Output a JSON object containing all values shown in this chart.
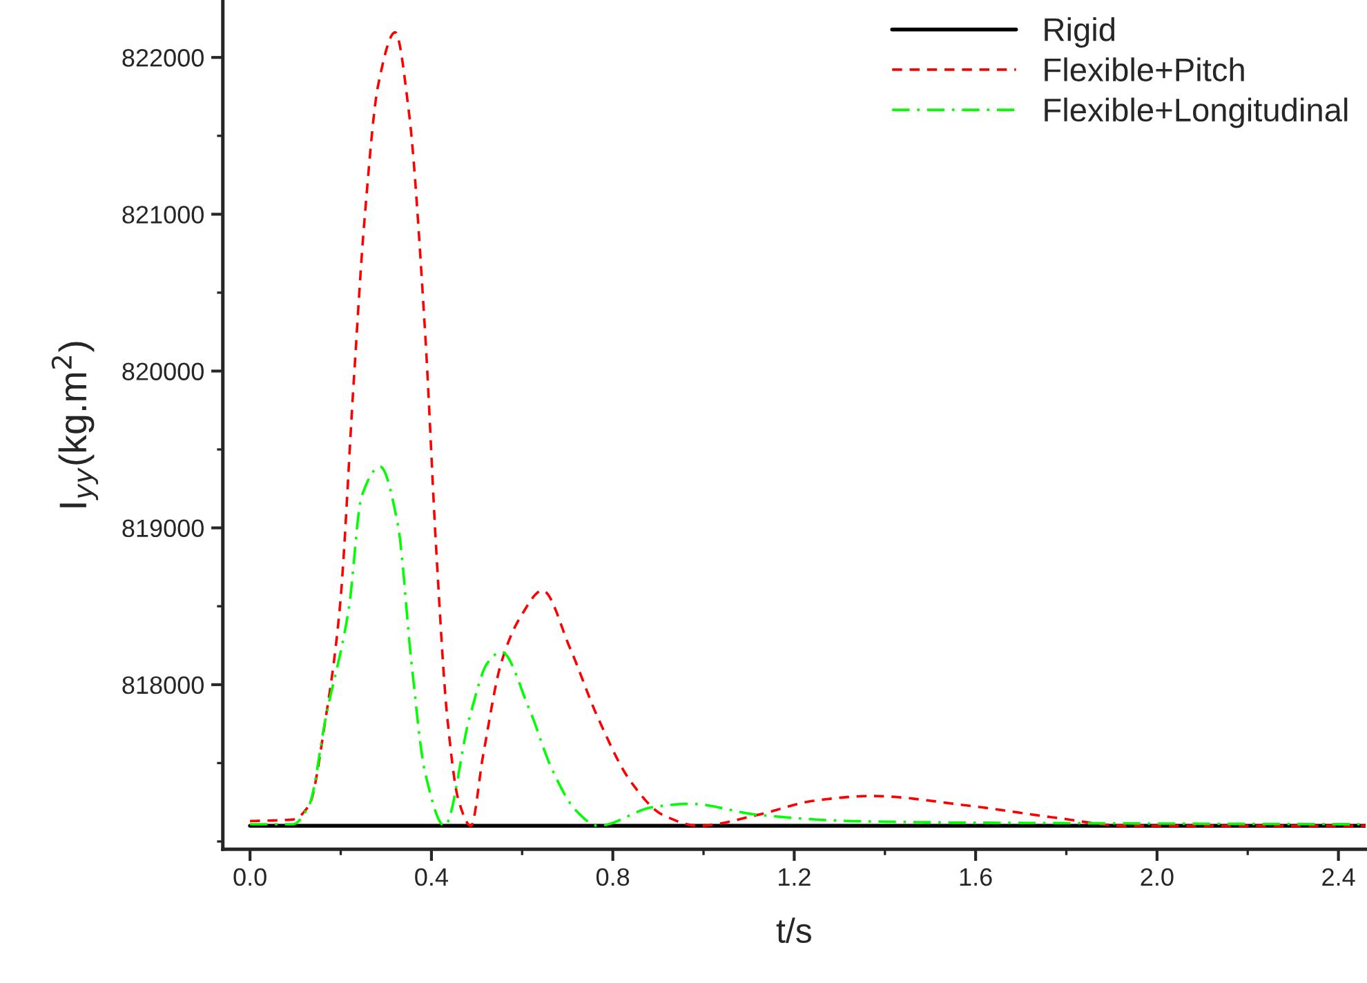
{
  "chart_data": {
    "type": "line",
    "xlabel": "t/s",
    "ylabel": "I$_{yy}$(kg.m$^{2}$)",
    "xlim": [
      -0.06,
      2.46
    ],
    "ylim": [
      816950,
      822360
    ],
    "xticks": [
      {
        "value": 0,
        "label": "0.0"
      },
      0.4,
      0.8,
      1.2,
      1.6,
      {
        "value": 2,
        "label": "2.0"
      },
      2.4
    ],
    "yticks": [
      818000,
      819000,
      820000,
      821000,
      822000
    ],
    "grid": false,
    "legend": "top right",
    "series": [
      {
        "name": "Rigid",
        "color": "#000000",
        "line_style": "solid",
        "x": [
          0,
          2.46
        ],
        "values": [
          817100,
          817100
        ]
      },
      {
        "name": "Flexible+Pitch",
        "color": "#ff0000",
        "line_style": "dashed",
        "x": [
          0,
          0.094,
          0.13,
          0.167,
          0.198,
          0.228,
          0.252,
          0.283,
          0.32,
          0.35,
          0.386,
          0.411,
          0.435,
          0.46,
          0.487,
          0.514,
          0.554,
          0.596,
          0.645,
          0.706,
          0.767,
          0.84,
          0.91,
          0.99,
          1.12,
          1.244,
          1.37,
          1.58,
          1.78,
          1.93,
          2.46
        ],
        "values": [
          817130,
          817140,
          817230,
          817790,
          818490,
          819900,
          820950,
          821830,
          822160,
          821660,
          820250,
          818840,
          817790,
          817260,
          817100,
          817550,
          818140,
          818430,
          818600,
          818230,
          817790,
          817380,
          817170,
          817100,
          817170,
          817260,
          817290,
          817230,
          817150,
          817100,
          817100
        ]
      },
      {
        "name": "Flexible+Longitudinal",
        "color": "#00ff00",
        "line_style": "dashdot",
        "x": [
          0,
          0.094,
          0.13,
          0.167,
          0.218,
          0.246,
          0.287,
          0.326,
          0.356,
          0.386,
          0.429,
          0.484,
          0.524,
          0.554,
          0.615,
          0.666,
          0.718,
          0.767,
          0.89,
          0.97,
          1.12,
          1.33,
          1.6,
          2.46
        ],
        "values": [
          817110,
          817110,
          817230,
          817790,
          818490,
          819200,
          819390,
          819020,
          818140,
          817440,
          817100,
          817790,
          818140,
          818210,
          817850,
          817460,
          817200,
          817100,
          817220,
          817240,
          817170,
          817130,
          817120,
          817110
        ]
      }
    ]
  }
}
